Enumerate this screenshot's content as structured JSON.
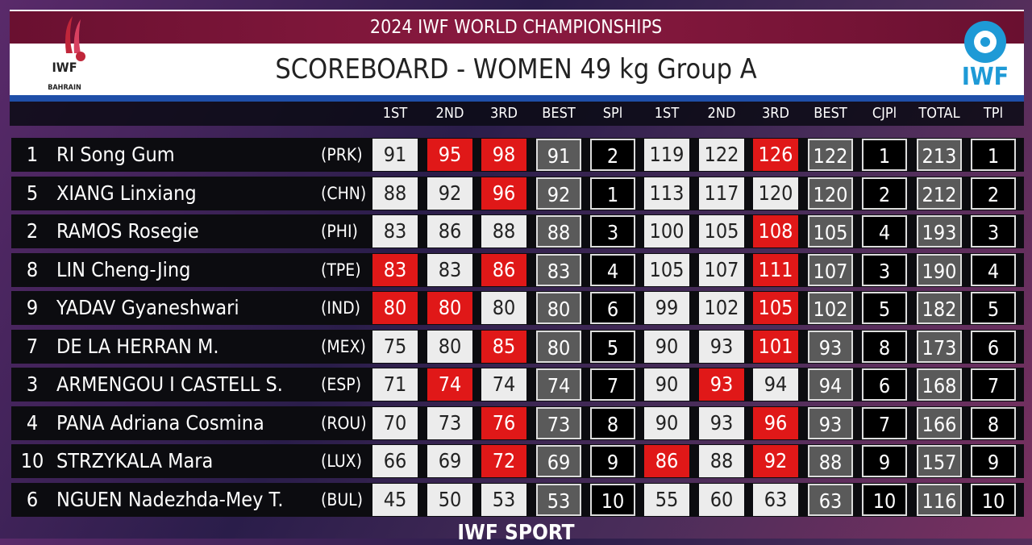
{
  "header": {
    "title": "2024 IWF WORLD CHAMPIONSHIPS",
    "subtitle": "SCOREBOARD - WOMEN 49 kg Group A",
    "left_logo": {
      "mark": "IWF",
      "place": "BAHRAIN"
    },
    "right_logo": "IWF"
  },
  "table": {
    "columns": [
      "1ST",
      "2ND",
      "3RD",
      "BEST",
      "SPl",
      "1ST",
      "2ND",
      "3RD",
      "BEST",
      "CJPl",
      "TOTAL",
      "TPl"
    ],
    "column_kinds": [
      "attempt",
      "attempt",
      "attempt",
      "best",
      "rank",
      "attempt",
      "attempt",
      "attempt",
      "best",
      "rank",
      "best",
      "rank"
    ],
    "rows": [
      {
        "lot": 1,
        "name": "RI Song Gum",
        "country": "(PRK)",
        "cells": [
          91,
          95,
          98,
          91,
          2,
          119,
          122,
          126,
          122,
          1,
          213,
          1
        ],
        "missed": [
          false,
          true,
          true,
          false,
          false,
          true
        ]
      },
      {
        "lot": 5,
        "name": "XIANG Linxiang",
        "country": "(CHN)",
        "cells": [
          88,
          92,
          96,
          92,
          1,
          113,
          117,
          120,
          120,
          2,
          212,
          2
        ],
        "missed": [
          false,
          false,
          true,
          false,
          false,
          false
        ]
      },
      {
        "lot": 2,
        "name": "RAMOS Rosegie",
        "country": "(PHI)",
        "cells": [
          83,
          86,
          88,
          88,
          3,
          100,
          105,
          108,
          105,
          4,
          193,
          3
        ],
        "missed": [
          false,
          false,
          false,
          false,
          false,
          true
        ]
      },
      {
        "lot": 8,
        "name": "LIN Cheng-Jing",
        "country": "(TPE)",
        "cells": [
          83,
          83,
          86,
          83,
          4,
          105,
          107,
          111,
          107,
          3,
          190,
          4
        ],
        "missed": [
          true,
          false,
          true,
          false,
          false,
          true
        ]
      },
      {
        "lot": 9,
        "name": "YADAV Gyaneshwari",
        "country": "(IND)",
        "cells": [
          80,
          80,
          80,
          80,
          6,
          99,
          102,
          105,
          102,
          5,
          182,
          5
        ],
        "missed": [
          true,
          true,
          false,
          false,
          false,
          true
        ]
      },
      {
        "lot": 7,
        "name": "DE LA HERRAN M.",
        "country": "(MEX)",
        "cells": [
          75,
          80,
          85,
          80,
          5,
          90,
          93,
          101,
          93,
          8,
          173,
          6
        ],
        "missed": [
          false,
          false,
          true,
          false,
          false,
          true
        ]
      },
      {
        "lot": 3,
        "name": "ARMENGOU I CASTELL S.",
        "country": "(ESP)",
        "cells": [
          71,
          74,
          74,
          74,
          7,
          90,
          93,
          94,
          94,
          6,
          168,
          7
        ],
        "missed": [
          false,
          true,
          false,
          false,
          true,
          false
        ]
      },
      {
        "lot": 4,
        "name": "PANA Adriana Cosmina",
        "country": "(ROU)",
        "cells": [
          70,
          73,
          76,
          73,
          8,
          90,
          93,
          96,
          93,
          7,
          166,
          8
        ],
        "missed": [
          false,
          false,
          true,
          false,
          false,
          true
        ]
      },
      {
        "lot": 10,
        "name": "STRZYKALA Mara",
        "country": "(LUX)",
        "cells": [
          66,
          69,
          72,
          69,
          9,
          86,
          88,
          92,
          88,
          9,
          157,
          9
        ],
        "missed": [
          false,
          false,
          true,
          true,
          false,
          true
        ]
      },
      {
        "lot": 6,
        "name": "NGUEN Nadezhda-Mey T.",
        "country": "(BUL)",
        "cells": [
          45,
          50,
          53,
          53,
          10,
          55,
          60,
          63,
          63,
          10,
          116,
          10
        ],
        "missed": [
          false,
          false,
          false,
          false,
          false,
          false
        ]
      }
    ]
  },
  "footer": "IWF SPORT"
}
